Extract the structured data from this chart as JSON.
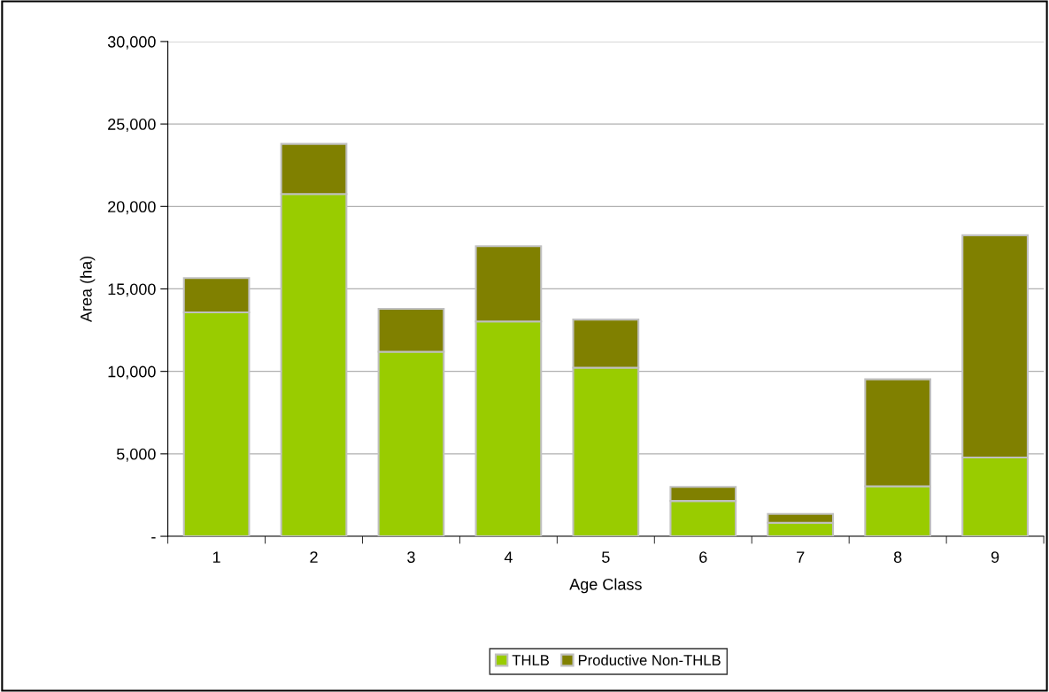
{
  "chart_data": {
    "type": "bar",
    "stacked": true,
    "xlabel": "Age Class",
    "ylabel": "Area (ha)",
    "categories": [
      "1",
      "2",
      "3",
      "4",
      "5",
      "6",
      "7",
      "8",
      "9"
    ],
    "series": [
      {
        "name": "THLB",
        "color": "#99cc00",
        "values": [
          13580,
          20750,
          11190,
          13030,
          10220,
          2140,
          820,
          3030,
          4780
        ]
      },
      {
        "name": "Productive Non-THLB",
        "color": "#808000",
        "values": [
          2080,
          3040,
          2600,
          4560,
          2920,
          850,
          540,
          6490,
          13470
        ]
      }
    ],
    "ylim": [
      0,
      30000
    ],
    "yticks": [
      {
        "value": 0,
        "label": "-"
      },
      {
        "value": 5000,
        "label": "5,000"
      },
      {
        "value": 10000,
        "label": "10,000"
      },
      {
        "value": 15000,
        "label": "15,000"
      },
      {
        "value": 20000,
        "label": "20,000"
      },
      {
        "value": 25000,
        "label": "25,000"
      },
      {
        "value": 30000,
        "label": "30,000"
      }
    ],
    "grid": "y",
    "legend": "bottom"
  }
}
